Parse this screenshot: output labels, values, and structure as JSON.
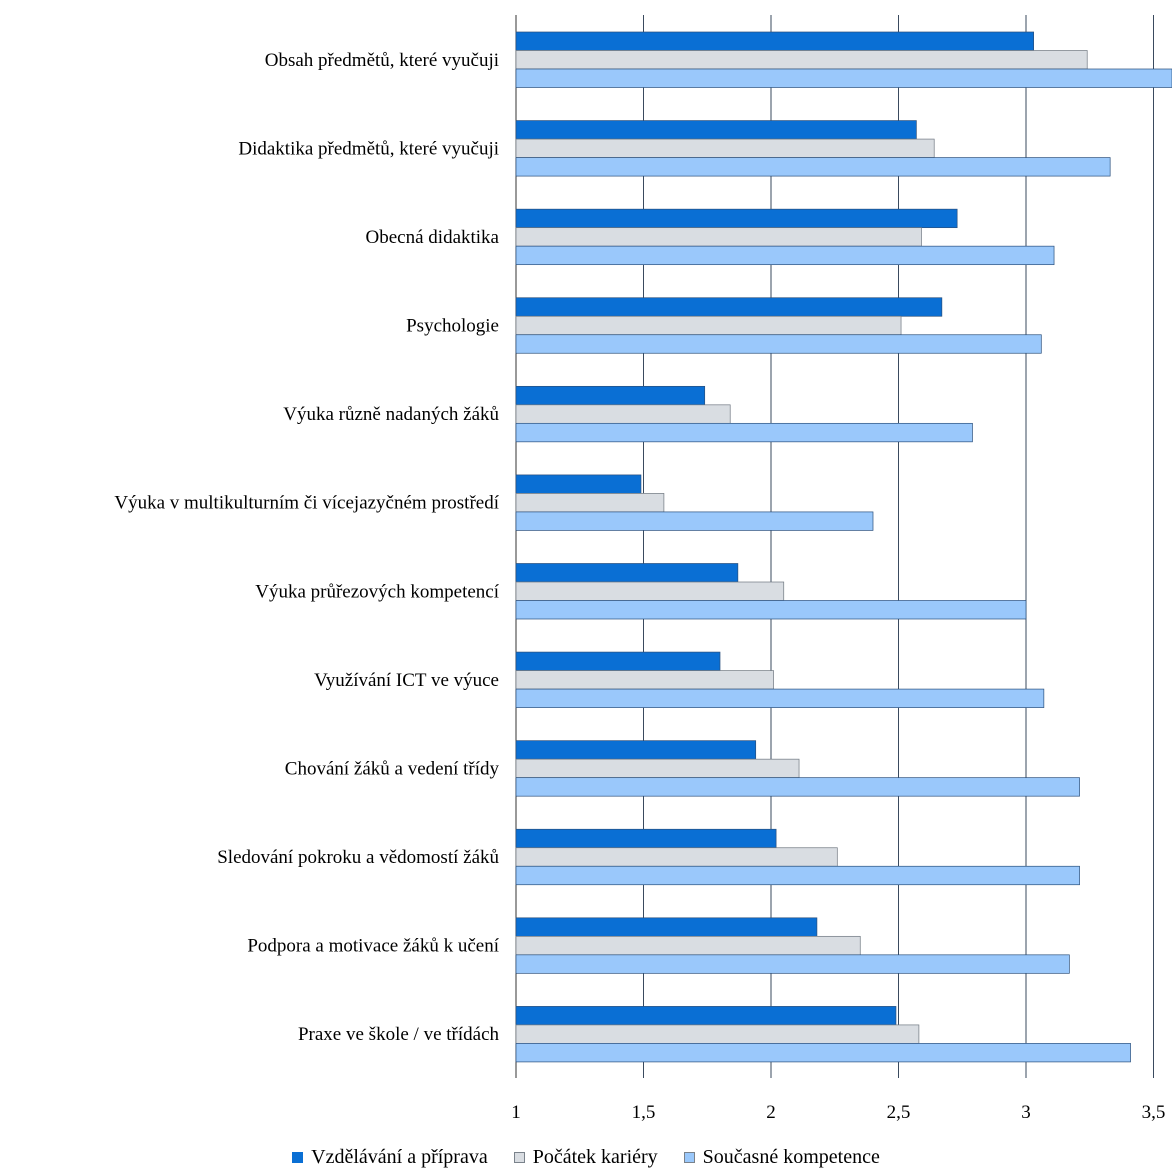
{
  "chart_data": {
    "type": "bar",
    "orientation": "horizontal",
    "categories": [
      "Obsah předmětů, které vyučuji",
      "Didaktika předmětů, které vyučuji",
      "Obecná didaktika",
      "Psychologie",
      "Výuka různě nadaných žáků",
      "Výuka v multikulturním či vícejazyčném prostředí",
      "Výuka průřezových kompetencí",
      "Využívání ICT ve výuce",
      "Chování žáků a vedení třídy",
      "Sledování pokroku a vědomostí žáků",
      "Podpora a motivace žáků k učení",
      "Praxe ve škole / ve třídách"
    ],
    "series": [
      {
        "name": "Vzdělávání a příprava",
        "color": "#0a6fd4",
        "values": [
          3.03,
          2.57,
          2.73,
          2.67,
          1.74,
          1.49,
          1.87,
          1.8,
          1.94,
          2.02,
          2.18,
          2.49
        ]
      },
      {
        "name": "Počátek kariéry",
        "color": "#d9dde2",
        "values": [
          3.24,
          2.64,
          2.59,
          2.51,
          1.84,
          1.58,
          2.05,
          2.01,
          2.11,
          2.26,
          2.35,
          2.58
        ]
      },
      {
        "name": "Současné kompetence",
        "color": "#9ac8fb",
        "values": [
          3.6,
          3.33,
          3.11,
          3.06,
          2.79,
          2.4,
          3.0,
          3.07,
          3.21,
          3.21,
          3.17,
          3.41
        ]
      }
    ],
    "xlim": [
      1,
      3.5
    ],
    "ticks": [
      1,
      1.5,
      2,
      2.5,
      3,
      3.5
    ],
    "tick_labels": [
      "1",
      "1,5",
      "2",
      "2,5",
      "3",
      "3,5"
    ],
    "grid": true,
    "legend_position": "bottom",
    "title": "",
    "xlabel": "",
    "ylabel": ""
  }
}
